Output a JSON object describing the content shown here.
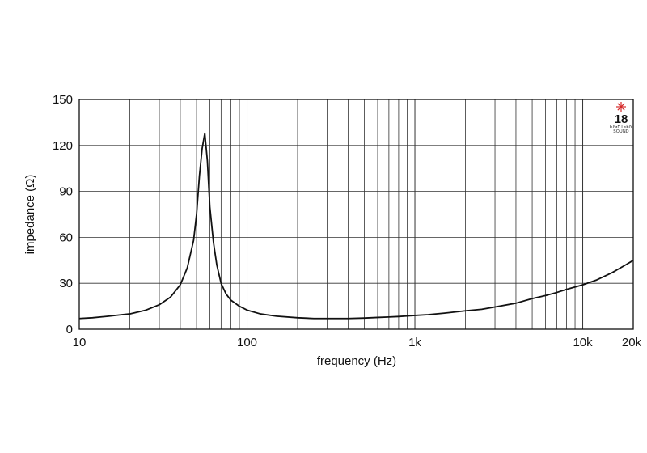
{
  "chart_data": {
    "type": "line",
    "title": "",
    "xlabel": "frequency (Hz)",
    "ylabel": "impedance (Ω)",
    "xscale": "log",
    "xlim": [
      10,
      20000
    ],
    "ylim": [
      0,
      150
    ],
    "x_ticks": [
      {
        "value": 10,
        "label": "10"
      },
      {
        "value": 100,
        "label": "100"
      },
      {
        "value": 1000,
        "label": "1k"
      },
      {
        "value": 10000,
        "label": "10k"
      },
      {
        "value": 20000,
        "label": "20k"
      }
    ],
    "y_ticks": [
      {
        "value": 0,
        "label": "0"
      },
      {
        "value": 30,
        "label": "30"
      },
      {
        "value": 60,
        "label": "60"
      },
      {
        "value": 90,
        "label": "90"
      },
      {
        "value": 120,
        "label": "120"
      },
      {
        "value": 150,
        "label": "150"
      }
    ],
    "grid": true,
    "line_color": "#111111",
    "series": [
      {
        "x": [
          10,
          12,
          15,
          18,
          20,
          25,
          30,
          35,
          40,
          44,
          48,
          50,
          52,
          54,
          56,
          58,
          60,
          63,
          66,
          70,
          75,
          80,
          90,
          100,
          120,
          150,
          200,
          250,
          300,
          400,
          500,
          600,
          700,
          800,
          1000,
          1200,
          1500,
          2000,
          2500,
          3000,
          4000,
          5000,
          6000,
          7000,
          8000,
          10000,
          12000,
          15000,
          18000,
          20000
        ],
        "y": [
          7,
          7.5,
          8.5,
          9.5,
          10,
          12.5,
          16,
          21,
          29,
          40,
          58,
          75,
          100,
          118,
          128,
          110,
          80,
          57,
          42,
          30,
          23,
          19,
          15,
          12.5,
          10,
          8.5,
          7.5,
          7,
          7,
          7,
          7.3,
          7.7,
          8,
          8.3,
          9,
          9.5,
          10.5,
          12,
          13,
          14.5,
          17,
          20,
          22,
          24,
          26,
          29,
          32,
          37,
          42,
          45
        ]
      }
    ]
  },
  "logo": {
    "number": "18",
    "top_text": "EIGHTEEN",
    "bottom_text": "SOUND",
    "star_color": "#d62a2a"
  }
}
